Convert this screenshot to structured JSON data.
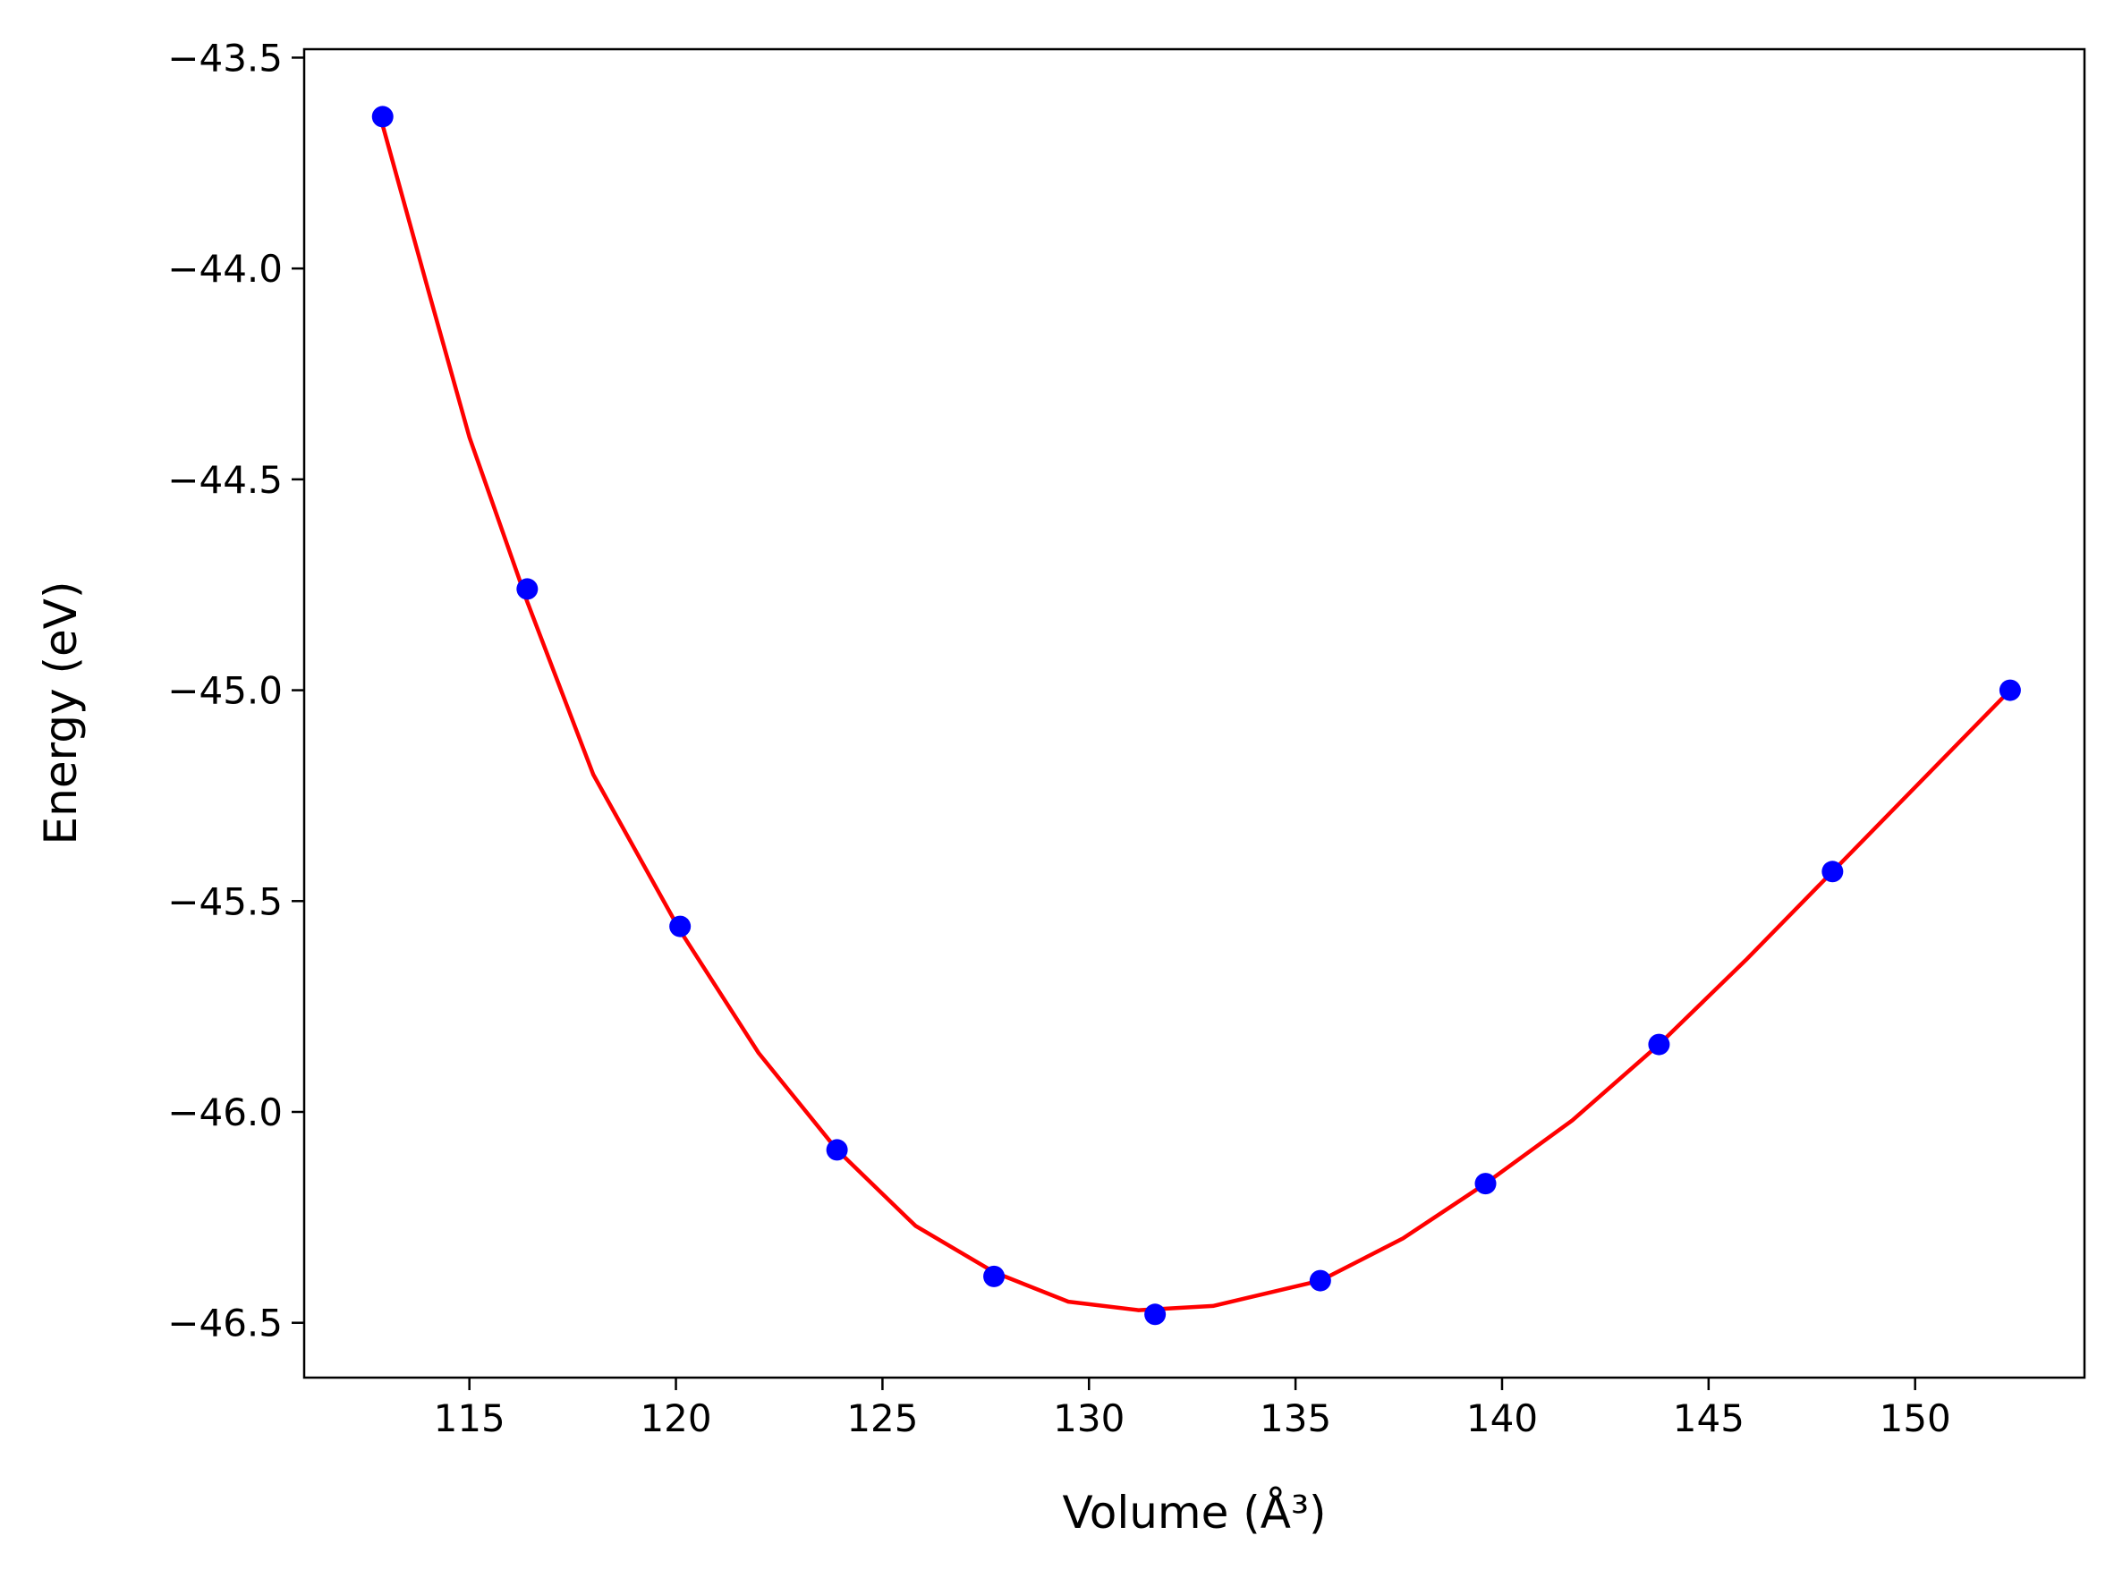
{
  "chart_data": {
    "type": "scatter",
    "title": "",
    "xlabel": "Volume (Å³)",
    "ylabel": "Energy (eV)",
    "xlim": [
      111.0,
      154.1
    ],
    "ylim": [
      -46.63,
      -43.48
    ],
    "xticks": [
      115,
      120,
      125,
      130,
      135,
      140,
      145,
      150
    ],
    "yticks": [
      -43.5,
      -44.0,
      -44.5,
      -45.0,
      -45.5,
      -46.0,
      -46.5
    ],
    "ytick_labels": [
      "−43.5",
      "−44.0",
      "−44.5",
      "−45.0",
      "−45.5",
      "−46.0",
      "−46.5"
    ],
    "xtick_labels": [
      "115",
      "120",
      "125",
      "130",
      "135",
      "140",
      "145",
      "150"
    ],
    "grid": false,
    "series": [
      {
        "kind": "points",
        "color": "#0000ff",
        "x": [
          112.9,
          116.4,
          120.1,
          123.9,
          127.7,
          131.6,
          135.6,
          139.6,
          143.8,
          148.0,
          152.3
        ],
        "y": [
          -43.64,
          -44.76,
          -45.56,
          -46.09,
          -46.39,
          -46.48,
          -46.4,
          -46.17,
          -45.84,
          -45.43,
          -45.0
        ]
      },
      {
        "kind": "fit-line",
        "color": "#ff0000",
        "x": [
          112.9,
          114.0,
          115.0,
          116.4,
          118.0,
          120.1,
          122.0,
          123.9,
          125.8,
          127.7,
          129.5,
          131.2,
          133.0,
          135.6,
          137.6,
          139.6,
          141.7,
          143.8,
          145.9,
          148.0,
          150.1,
          152.3
        ],
        "y": [
          -43.66,
          -44.05,
          -44.4,
          -44.79,
          -45.2,
          -45.57,
          -45.86,
          -46.09,
          -46.27,
          -46.38,
          -46.45,
          -46.47,
          -46.46,
          -46.4,
          -46.3,
          -46.17,
          -46.02,
          -45.84,
          -45.64,
          -45.43,
          -45.22,
          -45.0
        ]
      }
    ]
  },
  "colors": {
    "points": "#0000ff",
    "fit_line": "#ff0000",
    "axes": "#000000",
    "background": "#ffffff"
  }
}
